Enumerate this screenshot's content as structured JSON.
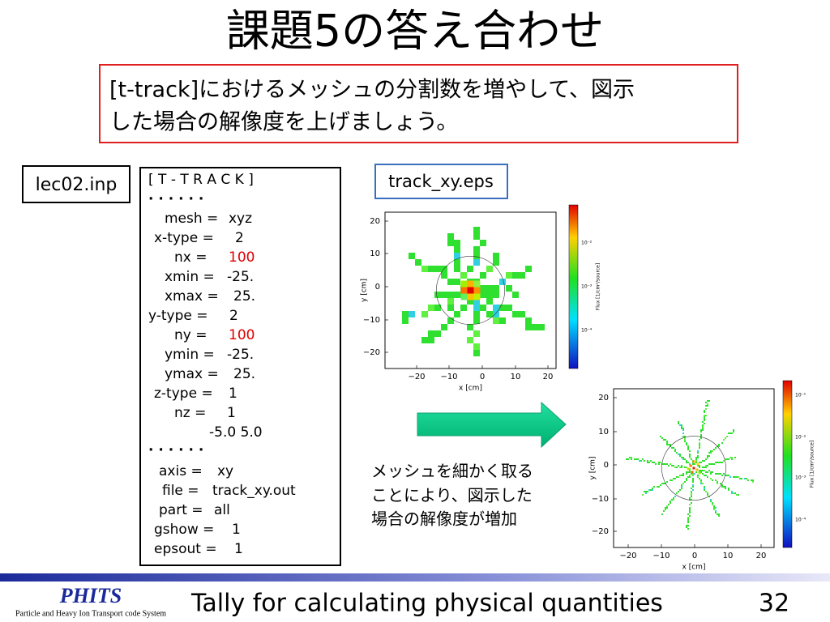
{
  "title": "課題5の答え合わせ",
  "task": [
    "[t-track]におけるメッシュの分割数を増やして、図示",
    "した場合の解像度を上げましょう。"
  ],
  "file_label": "lec02.inp",
  "input_lines": [
    {
      "text": "[ T - T R A C K ]"
    },
    {
      "text": "· · · · · ·"
    },
    {
      "key": "mesh =",
      "value": "xyz"
    },
    {
      "key": "x-type =",
      "value": "2"
    },
    {
      "key": "nx =",
      "value": "100",
      "color": "#e00000"
    },
    {
      "key": "xmin =",
      "value": "-25."
    },
    {
      "key": "xmax =",
      "value": "25."
    },
    {
      "key": "y-type =",
      "value": "2"
    },
    {
      "key": "ny =",
      "value": "100",
      "color": "#e00000"
    },
    {
      "key": "ymin =",
      "value": "-25."
    },
    {
      "key": "ymax =",
      "value": "25."
    },
    {
      "key": "z-type =",
      "value": "1"
    },
    {
      "key": "nz =",
      "value": "1"
    },
    {
      "text": "-5.0  5.0"
    },
    {
      "text": "· · · · · ·"
    },
    {
      "key": "axis =",
      "value": "xy"
    },
    {
      "key": "file =",
      "value": "track_xy.out"
    },
    {
      "key": "part =",
      "value": "all"
    },
    {
      "key": "gshow =",
      "value": "1"
    },
    {
      "key": "epsout =",
      "value": "1"
    }
  ],
  "plot_before": {
    "caption": "track_xy.eps",
    "xticks": [
      "−20",
      "−10",
      "0",
      "10",
      "20"
    ],
    "yticks": [
      "20",
      "10",
      "0",
      "−10",
      "−20"
    ],
    "xlabel": "x [cm]",
    "ylabel": "y [cm]",
    "cbar_ticks": [
      "10⁻²",
      "10⁻³",
      "10⁻⁴"
    ],
    "cbar_label": "Flux [1/cm²/source]"
  },
  "plot_after": {
    "xticks": [
      "−20",
      "−10",
      "0",
      "10",
      "20"
    ],
    "yticks": [
      "20",
      "10",
      "0",
      "−10",
      "−20"
    ],
    "xlabel": "x [cm]",
    "ylabel": "y [cm]",
    "cbar_ticks": [
      "10⁻¹",
      "10⁻²",
      "10⁻³",
      "10⁻⁴"
    ],
    "cbar_label": "Flux [1/cm²/source]"
  },
  "note": [
    "メッシュを細かく取る",
    "ことにより、図示した",
    "場合の解像度が増加"
  ],
  "footer": {
    "logo": "PHITS",
    "logo_sub": "Particle and Heavy Ion Transport code System",
    "text": "Tally for calculating physical quantities",
    "page": "32"
  }
}
